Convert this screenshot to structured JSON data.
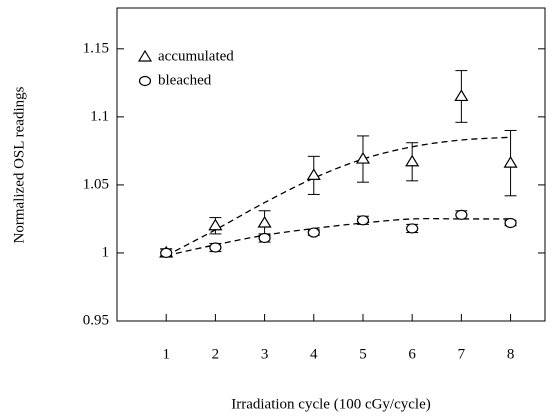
{
  "chart_data": {
    "type": "scatter",
    "xlabel": "Irradiation cycle (100 cGy/cycle)",
    "ylabel": "Normalized OSL readings",
    "x": [
      1,
      2,
      3,
      4,
      5,
      6,
      7,
      8
    ],
    "xlim": [
      0,
      8.7
    ],
    "xticks": [
      1,
      2,
      3,
      4,
      5,
      6,
      7,
      8
    ],
    "ylim": [
      0.95,
      1.18
    ],
    "yticks": [
      0.95,
      1,
      1.05,
      1.1,
      1.15
    ],
    "legend": "upper left",
    "series": [
      {
        "name": "accumulated",
        "marker": "triangle",
        "color": "#000000",
        "values": [
          1.0,
          1.02,
          1.022,
          1.057,
          1.069,
          1.067,
          1.115,
          1.066
        ],
        "errors": [
          0.003,
          0.006,
          0.009,
          0.014,
          0.017,
          0.014,
          0.019,
          0.024
        ]
      },
      {
        "name": "bleached",
        "marker": "circle",
        "color": "#000000",
        "values": [
          1.0,
          1.004,
          1.011,
          1.015,
          1.024,
          1.018,
          1.028,
          1.022
        ],
        "errors": [
          0.003,
          0.003,
          0.003,
          0.002,
          0.003,
          0.003,
          0.003,
          0.002
        ]
      }
    ],
    "fits": [
      {
        "values": [
          0.998,
          1.017,
          1.037,
          1.055,
          1.069,
          1.078,
          1.083,
          1.085
        ]
      },
      {
        "values": [
          0.998,
          1.006,
          1.013,
          1.018,
          1.022,
          1.025,
          1.025,
          1.025
        ]
      }
    ]
  }
}
